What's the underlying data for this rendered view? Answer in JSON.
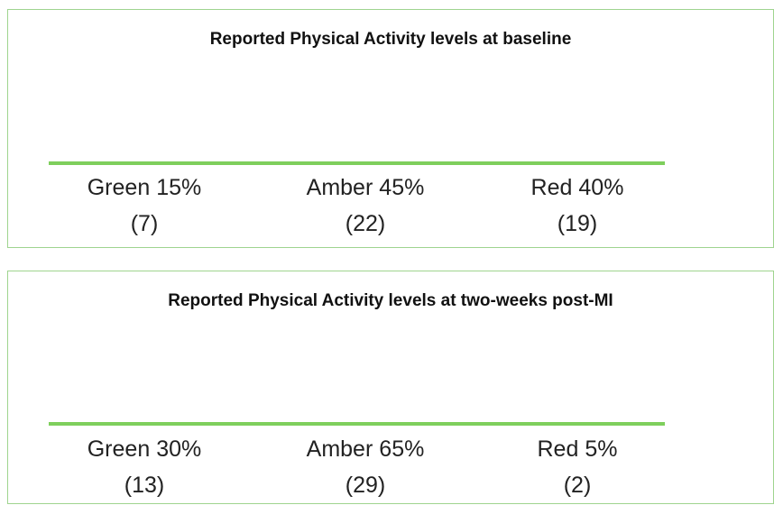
{
  "chart_data": [
    {
      "type": "pictogram",
      "title": "Reported Physical Activity levels at baseline",
      "icon_count": 10,
      "series": [
        {
          "name": "Green",
          "color": "#7ecf5c",
          "values": [
            15
          ],
          "value_labels": [
            "15%"
          ],
          "count": 7,
          "count_label": "(7)"
        },
        {
          "name": "Amber",
          "color": "#f0a033",
          "values": [
            45
          ],
          "value_labels": [
            "45%"
          ],
          "count": 22,
          "count_label": "(22)"
        },
        {
          "name": "Red",
          "color": "#ee1c25",
          "values": [
            40
          ],
          "value_labels": [
            "40%"
          ],
          "count": 19,
          "count_label": "(19)"
        }
      ]
    },
    {
      "type": "pictogram",
      "title": "Reported Physical Activity levels at two-weeks post-MI",
      "icon_count": 10,
      "series": [
        {
          "name": "Green",
          "color": "#7ecf5c",
          "values": [
            30
          ],
          "value_labels": [
            "30%"
          ],
          "count": 13,
          "count_label": "(13)"
        },
        {
          "name": "Amber",
          "color": "#f0a033",
          "values": [
            65
          ],
          "value_labels": [
            "65%"
          ],
          "count": 29,
          "count_label": "(29)"
        },
        {
          "name": "Red",
          "color": "#ee1c25",
          "values": [
            5
          ],
          "value_labels": [
            "5%"
          ],
          "count": 2,
          "count_label": "(2)"
        }
      ]
    }
  ]
}
